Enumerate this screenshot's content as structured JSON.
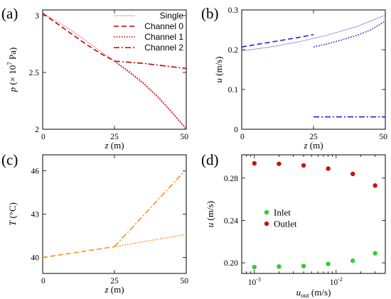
{
  "chart_data": [
    {
      "panel_label": "(a)",
      "type": "line",
      "xlabel_var": "z",
      "xlabel_unit": " (m)",
      "ylabel_var": "p",
      "ylabel_pre": " (× 10",
      "ylabel_exp": "7",
      "ylabel_post": " Pa)",
      "xlim": [
        0,
        50
      ],
      "ylim": [
        2,
        3.05
      ],
      "xticks": [
        "0",
        "25",
        "50"
      ],
      "yticks": [
        "2",
        "2.5",
        "3"
      ],
      "legend": "top-right",
      "series": [
        {
          "name": "Single",
          "color": "#f0a0a0",
          "dash": "solid",
          "x": [
            0,
            5,
            10,
            15,
            20,
            25,
            30,
            35,
            40,
            45,
            50
          ],
          "y": [
            3.02,
            2.95,
            2.87,
            2.78,
            2.69,
            2.6,
            2.5,
            2.4,
            2.28,
            2.15,
            2.01
          ]
        },
        {
          "name": "Channel 0",
          "color": "#c00000",
          "dash": "dash",
          "x": [
            0,
            5,
            10,
            15,
            20,
            25
          ],
          "y": [
            3.02,
            2.93,
            2.84,
            2.75,
            2.67,
            2.6
          ]
        },
        {
          "name": "Channel 1",
          "color": "#c00000",
          "dash": "dot",
          "x": [
            25,
            30,
            35,
            40,
            45,
            50
          ],
          "y": [
            2.6,
            2.51,
            2.41,
            2.29,
            2.15,
            2.0
          ]
        },
        {
          "name": "Channel 2",
          "color": "#c00000",
          "dash": "dashdot",
          "x": [
            25,
            30,
            35,
            40,
            45,
            50
          ],
          "y": [
            2.6,
            2.59,
            2.58,
            2.565,
            2.55,
            2.535
          ]
        }
      ]
    },
    {
      "panel_label": "(b)",
      "type": "line",
      "xlabel_var": "z",
      "xlabel_unit": " (m)",
      "ylabel_var": "u",
      "ylabel_unit": " (m/s)",
      "xlim": [
        0,
        50
      ],
      "ylim": [
        0,
        0.3
      ],
      "xticks": [
        "0",
        "25",
        "50"
      ],
      "yticks": [
        "0",
        "0.1",
        "0.2",
        "0.3"
      ],
      "series": [
        {
          "color": "#9999dd",
          "dash": "solid",
          "x": [
            0,
            10,
            20,
            30,
            40,
            50
          ],
          "y": [
            0.197,
            0.207,
            0.22,
            0.237,
            0.258,
            0.287
          ]
        },
        {
          "color": "#2020e0",
          "dash": "dash",
          "x": [
            0,
            5,
            10,
            15,
            20,
            25
          ],
          "y": [
            0.207,
            0.213,
            0.219,
            0.225,
            0.231,
            0.238
          ]
        },
        {
          "color": "#2020e0",
          "dash": "dot",
          "x": [
            25,
            30,
            35,
            40,
            45,
            50
          ],
          "y": [
            0.207,
            0.215,
            0.225,
            0.236,
            0.25,
            0.272
          ]
        },
        {
          "color": "#2020e0",
          "dash": "dashdot",
          "x": [
            25,
            50
          ],
          "y": [
            0.031,
            0.031
          ]
        }
      ]
    },
    {
      "panel_label": "(c)",
      "type": "line",
      "xlabel_var": "z",
      "xlabel_unit": " (m)",
      "ylabel_var": "T",
      "ylabel_unit": " (°C)",
      "xlim": [
        0,
        50
      ],
      "ylim": [
        38.9,
        47.1
      ],
      "xticks": [
        "0",
        "25",
        "50"
      ],
      "yticks": [
        "40",
        "43",
        "46"
      ],
      "series": [
        {
          "color": "#f39020",
          "dash": "dash",
          "x": [
            0,
            25
          ],
          "y": [
            40.0,
            40.75
          ]
        },
        {
          "color": "#f39020",
          "dash": "dot",
          "x": [
            25,
            50
          ],
          "y": [
            40.75,
            41.6
          ]
        },
        {
          "color": "#f39020",
          "dash": "dashdot",
          "x": [
            25,
            50
          ],
          "y": [
            40.75,
            46.1
          ]
        }
      ]
    },
    {
      "panel_label": "(d)",
      "type": "scatter",
      "xlabel_var": "u",
      "xlabel_sub": "out",
      "xlabel_unit": " (m/s)",
      "ylabel_var": "u",
      "ylabel_unit": " (m/s)",
      "xscale": "log",
      "xlim": [
        0.0007,
        0.04
      ],
      "ylim": [
        0.19,
        0.302
      ],
      "xticks": [
        {
          "value": 0.001,
          "base": "10",
          "exp": "-3"
        },
        {
          "value": 0.01,
          "base": "10",
          "exp": "-2"
        }
      ],
      "yticks": [
        "0.20",
        "0.24",
        "0.28"
      ],
      "legend": "center-left",
      "series": [
        {
          "name": "Inlet",
          "color": "#33cc33",
          "x": [
            0.001,
            0.002,
            0.004,
            0.008,
            0.016,
            0.03
          ],
          "y": [
            0.196,
            0.1965,
            0.197,
            0.199,
            0.202,
            0.209
          ]
        },
        {
          "name": "Outlet",
          "color": "#cc1111",
          "x": [
            0.001,
            0.002,
            0.004,
            0.008,
            0.016,
            0.03
          ],
          "y": [
            0.294,
            0.2935,
            0.292,
            0.289,
            0.284,
            0.273
          ]
        }
      ]
    }
  ]
}
